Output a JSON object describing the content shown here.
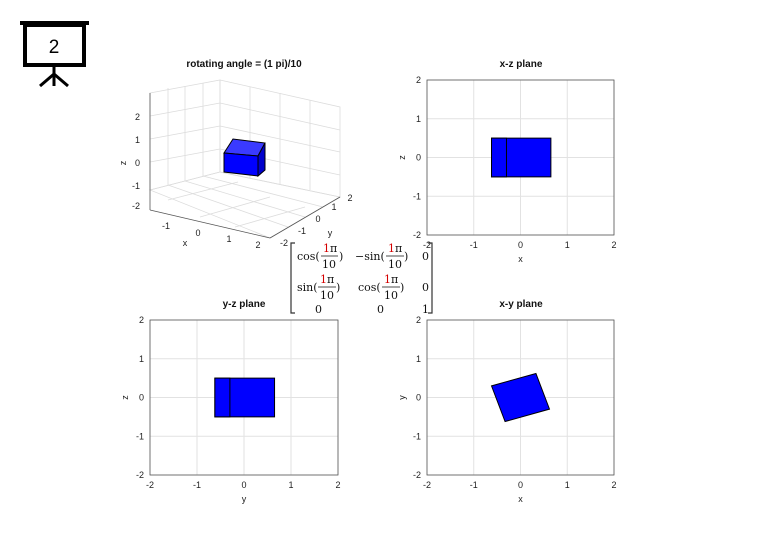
{
  "slide": {
    "number": "2",
    "icon": "presentation-board-icon"
  },
  "colors": {
    "box": "#0000ff",
    "edge": "#000000",
    "grid": "#e2e2e2",
    "highlight": "#d40000"
  },
  "matrix": {
    "num": "1",
    "pi": "π",
    "den": "10",
    "cos": "cos(",
    "sin": "sin(",
    "neg_sin": "−sin(",
    "close": ")",
    "zero": "0",
    "one": "1"
  },
  "chart_data": [
    {
      "type": "3d-box",
      "title": "rotating angle = (1 pi)/10",
      "xlabel": "x",
      "ylabel": "y",
      "zlabel": "z",
      "xlim": [
        -2,
        2
      ],
      "ylim": [
        -2,
        2
      ],
      "zlim": [
        -2,
        2
      ],
      "xticks": [
        "-1",
        "0",
        "1",
        "2"
      ],
      "yticks": [
        "-2",
        "-1",
        "0",
        "1",
        "2"
      ],
      "zticks": [
        "-2",
        "-1",
        "0",
        "1",
        "2"
      ],
      "grid": true
    },
    {
      "type": "projection",
      "title": "x-z plane",
      "xlabel": "x",
      "ylabel": "z",
      "xlim": [
        -2,
        2
      ],
      "ylim": [
        -2,
        2
      ],
      "xticks": [
        "-2",
        "-1",
        "0",
        "1",
        "2"
      ],
      "yticks": [
        "2",
        "1",
        "0",
        "-1",
        "-2"
      ],
      "rects": [
        [
          -0.62,
          -0.5,
          0.65,
          0.5
        ],
        [
          -0.62,
          -0.5,
          -0.3,
          0.5
        ]
      ],
      "grid": true
    },
    {
      "type": "projection",
      "title": "y-z plane",
      "xlabel": "y",
      "ylabel": "z",
      "xlim": [
        -2,
        2
      ],
      "ylim": [
        -2,
        2
      ],
      "xticks": [
        "-2",
        "-1",
        "0",
        "1",
        "2"
      ],
      "yticks": [
        "2",
        "1",
        "0",
        "-1",
        "-2"
      ],
      "rects": [
        [
          -0.62,
          -0.5,
          0.65,
          0.5
        ],
        [
          -0.62,
          -0.5,
          -0.3,
          0.5
        ]
      ],
      "grid": true
    },
    {
      "type": "projection",
      "title": "x-y plane",
      "xlabel": "x",
      "ylabel": "y",
      "xlim": [
        -2,
        2
      ],
      "ylim": [
        -2,
        2
      ],
      "xticks": [
        "-2",
        "-1",
        "0",
        "1",
        "2"
      ],
      "yticks": [
        "2",
        "1",
        "0",
        "-1",
        "-2"
      ],
      "polygon": [
        [
          -0.62,
          0.3
        ],
        [
          0.33,
          0.62
        ],
        [
          0.62,
          -0.3
        ],
        [
          -0.33,
          -0.62
        ]
      ],
      "grid": true
    }
  ]
}
